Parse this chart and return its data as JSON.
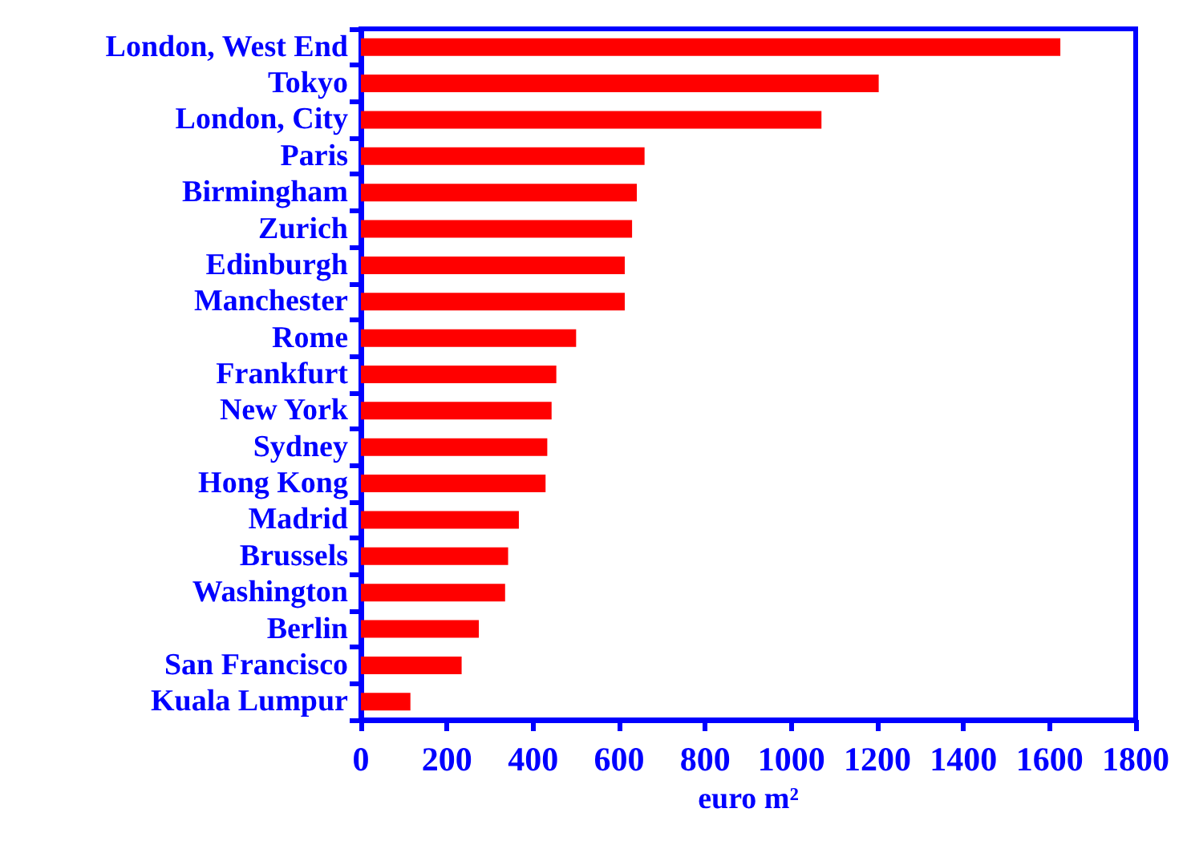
{
  "chart_data": {
    "type": "bar",
    "orientation": "horizontal",
    "xlabel": "euro m²",
    "categories": [
      "London, West End",
      "Tokyo",
      "London, City",
      "Paris",
      "Birmingham",
      "Zurich",
      "Edinburgh",
      "Manchester",
      "Rome",
      "Frankfurt",
      "New York",
      "Sydney",
      "Hong Kong",
      "Madrid",
      "Brussels",
      "Washington",
      "Berlin",
      "San Francisco",
      "Kuala Lumpur"
    ],
    "values": [
      1625,
      1203,
      1070,
      659,
      641,
      630,
      613,
      613,
      500,
      454,
      443,
      433,
      429,
      367,
      342,
      335,
      274,
      234,
      115
    ],
    "color": "#ff0000",
    "xlim": [
      0,
      1800
    ],
    "xticks": [
      0,
      200,
      400,
      600,
      800,
      1000,
      1200,
      1400,
      1600,
      1800
    ],
    "grid": false
  }
}
